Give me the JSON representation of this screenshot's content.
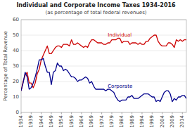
{
  "chart_data": {
    "type": "line",
    "title": "Individual and Corporate Income Taxes 1934-2016",
    "subtitle": "(as percentage of total federal revenues)",
    "y_label": "Percentage of Total Revenue",
    "x": [
      1934,
      1935,
      1936,
      1937,
      1938,
      1939,
      1940,
      1941,
      1942,
      1943,
      1944,
      1945,
      1946,
      1947,
      1948,
      1949,
      1950,
      1951,
      1952,
      1953,
      1954,
      1955,
      1956,
      1957,
      1958,
      1959,
      1960,
      1961,
      1962,
      1963,
      1964,
      1965,
      1966,
      1967,
      1968,
      1969,
      1970,
      1971,
      1972,
      1973,
      1974,
      1975,
      1976,
      1977,
      1978,
      1979,
      1980,
      1981,
      1982,
      1983,
      1984,
      1985,
      1986,
      1987,
      1988,
      1989,
      1990,
      1991,
      1992,
      1993,
      1994,
      1995,
      1996,
      1997,
      1998,
      1999,
      2000,
      2001,
      2002,
      2003,
      2004,
      2005,
      2006,
      2007,
      2008,
      2009,
      2010,
      2011,
      2012,
      2013,
      2014,
      2015,
      2016
    ],
    "series": [
      {
        "name": "Individual",
        "color": "#cc0000",
        "values": [
          14,
          20,
          24,
          26,
          19,
          19,
          16,
          19,
          25,
          28,
          34,
          37,
          40,
          43,
          38,
          38,
          40,
          42,
          43,
          43,
          42,
          44,
          44,
          44,
          43,
          47,
          44,
          44,
          45,
          44,
          43,
          42,
          43,
          42,
          45,
          47,
          47,
          46,
          45,
          45,
          45,
          44,
          44,
          45,
          45,
          47,
          47,
          47,
          48,
          48,
          45,
          46,
          46,
          46,
          44,
          45,
          45,
          45,
          44,
          45,
          44,
          44,
          46,
          46,
          48,
          49,
          50,
          50,
          46,
          44,
          43,
          43,
          43,
          45,
          45,
          44,
          42,
          47,
          46,
          47,
          46,
          47,
          47
        ]
      },
      {
        "name": "Corporate",
        "color": "#00008b",
        "values": [
          14,
          19,
          26,
          23,
          15,
          16,
          19,
          23,
          28,
          34,
          34,
          35,
          30,
          26,
          26,
          18,
          26,
          27,
          32,
          30,
          30,
          27,
          28,
          27,
          25,
          23,
          23,
          22,
          20,
          21,
          21,
          22,
          23,
          22,
          19,
          20,
          17,
          15,
          15,
          15,
          15,
          15,
          14,
          15,
          15,
          14,
          13,
          10,
          8,
          7,
          8,
          8,
          8,
          10,
          10,
          11,
          9,
          9,
          9,
          10,
          11,
          12,
          12,
          12,
          11,
          10,
          10,
          7,
          8,
          7,
          10,
          13,
          14,
          14,
          12,
          7,
          9,
          8,
          10,
          10,
          11,
          11,
          9
        ]
      }
    ],
    "xlim": [
      1934,
      2016
    ],
    "ylim": [
      0,
      60
    ],
    "xticks": [
      1934,
      1939,
      1944,
      1949,
      1954,
      1959,
      1964,
      1969,
      1974,
      1979,
      1984,
      1989,
      1994,
      1999,
      2004,
      2009,
      2014
    ],
    "yticks": [
      0,
      10,
      20,
      30,
      40,
      50,
      60
    ],
    "grid": true
  }
}
